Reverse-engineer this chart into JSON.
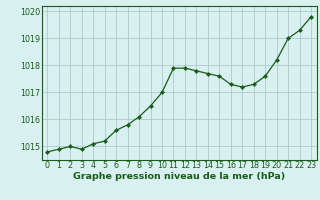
{
  "x": [
    0,
    1,
    2,
    3,
    4,
    5,
    6,
    7,
    8,
    9,
    10,
    11,
    12,
    13,
    14,
    15,
    16,
    17,
    18,
    19,
    20,
    21,
    22,
    23
  ],
  "y": [
    1014.8,
    1014.9,
    1015.0,
    1014.9,
    1015.1,
    1015.2,
    1015.6,
    1015.8,
    1016.1,
    1016.5,
    1017.0,
    1017.9,
    1017.9,
    1017.8,
    1017.7,
    1017.6,
    1017.3,
    1017.2,
    1017.3,
    1017.6,
    1018.2,
    1019.0,
    1019.3,
    1019.8
  ],
  "ylim": [
    1014.5,
    1020.2
  ],
  "yticks": [
    1015,
    1016,
    1017,
    1018,
    1019,
    1020
  ],
  "xticks": [
    0,
    1,
    2,
    3,
    4,
    5,
    6,
    7,
    8,
    9,
    10,
    11,
    12,
    13,
    14,
    15,
    16,
    17,
    18,
    19,
    20,
    21,
    22,
    23
  ],
  "line_color": "#1a5c1a",
  "marker": "D",
  "marker_size": 2.0,
  "bg_color": "#d8f0f0",
  "grid_color": "#aacccc",
  "xlabel": "Graphe pression niveau de la mer (hPa)",
  "xlabel_fontsize": 6.8,
  "tick_fontsize": 5.8,
  "label_color": "#1a5c1a"
}
